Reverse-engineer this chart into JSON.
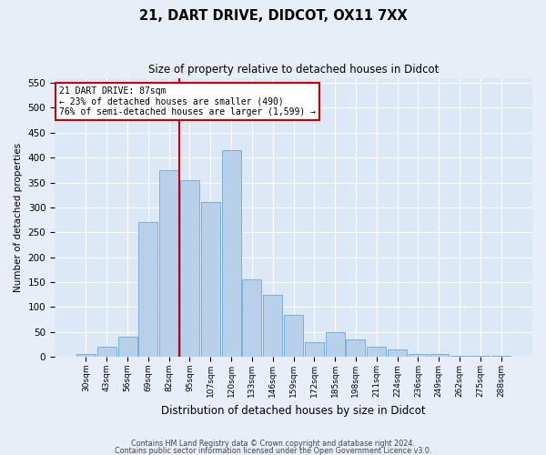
{
  "title1": "21, DART DRIVE, DIDCOT, OX11 7XX",
  "title2": "Size of property relative to detached houses in Didcot",
  "xlabel": "Distribution of detached houses by size in Didcot",
  "ylabel": "Number of detached properties",
  "categories": [
    "30sqm",
    "43sqm",
    "56sqm",
    "69sqm",
    "82sqm",
    "95sqm",
    "107sqm",
    "120sqm",
    "133sqm",
    "146sqm",
    "159sqm",
    "172sqm",
    "185sqm",
    "198sqm",
    "211sqm",
    "224sqm",
    "236sqm",
    "249sqm",
    "262sqm",
    "275sqm",
    "288sqm"
  ],
  "values": [
    5,
    20,
    40,
    270,
    375,
    355,
    310,
    415,
    155,
    125,
    85,
    30,
    50,
    35,
    20,
    15,
    5,
    5,
    3,
    2,
    3
  ],
  "bar_color": "#b8d0ea",
  "bar_edge_color": "#6aaad4",
  "vline_x_index": 4.5,
  "vline_color": "#cc0000",
  "annotation_text": "21 DART DRIVE: 87sqm\n← 23% of detached houses are smaller (490)\n76% of semi-detached houses are larger (1,599) →",
  "annotation_box_color": "#ffffff",
  "annotation_box_edge": "#cc0000",
  "ylim": [
    0,
    560
  ],
  "yticks": [
    0,
    50,
    100,
    150,
    200,
    250,
    300,
    350,
    400,
    450,
    500,
    550
  ],
  "footer1": "Contains HM Land Registry data © Crown copyright and database right 2024.",
  "footer2": "Contains public sector information licensed under the Open Government Licence v3.0.",
  "fig_bg_color": "#e8eef8",
  "plot_bg_color": "#dce8f5"
}
